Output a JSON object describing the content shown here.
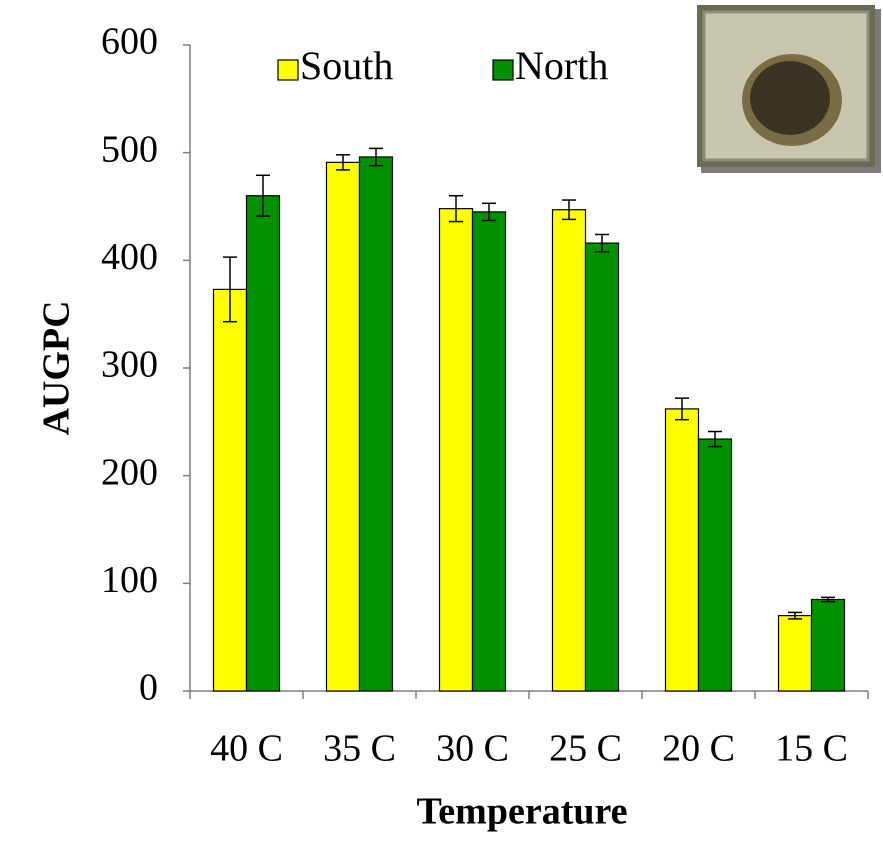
{
  "chart_data": {
    "type": "bar",
    "categories": [
      "40 C",
      "35 C",
      "30 C",
      "25 C",
      "20 C",
      "15 C"
    ],
    "series": [
      {
        "name": "South",
        "color": "#ffff00",
        "values": [
          373,
          491,
          448,
          447,
          262,
          70
        ],
        "errors": [
          30,
          7,
          12,
          9,
          10,
          3
        ]
      },
      {
        "name": "North",
        "color": "#009100",
        "values": [
          460,
          496,
          445,
          416,
          234,
          85
        ],
        "errors": [
          19,
          8,
          8,
          8,
          7,
          2
        ]
      }
    ],
    "ylabel": "AUGPC",
    "xlabel": "Temperature",
    "ylim": [
      0,
      600
    ],
    "yticks": [
      0,
      100,
      200,
      300,
      400,
      500,
      600
    ],
    "legend": "top-left"
  }
}
